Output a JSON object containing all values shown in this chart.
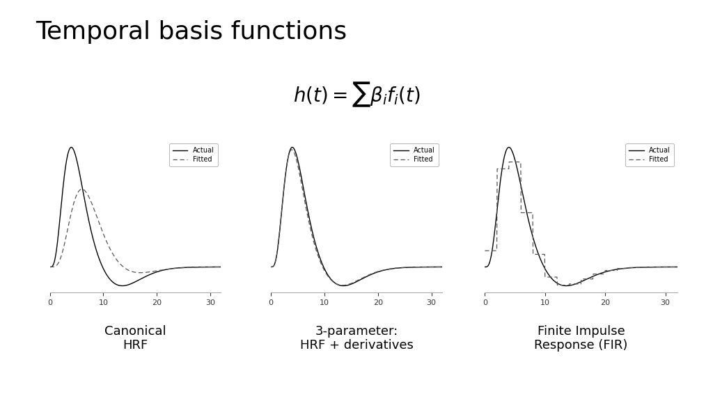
{
  "title": "Temporal basis functions",
  "formula": "$h(t) = \\sum \\beta_i f_i(t)$",
  "background_color": "#ffffff",
  "subplot_labels": [
    "Canonical\nHRF",
    "3-parameter:\nHRF + derivatives",
    "Finite Impulse\nResponse (FIR)"
  ],
  "xlim": [
    0,
    32
  ],
  "xticks": [
    0,
    10,
    20,
    30
  ],
  "legend_entries": [
    "Actual",
    "Fitted"
  ],
  "title_fontsize": 26,
  "formula_fontsize": 20,
  "label_fontsize": 13
}
